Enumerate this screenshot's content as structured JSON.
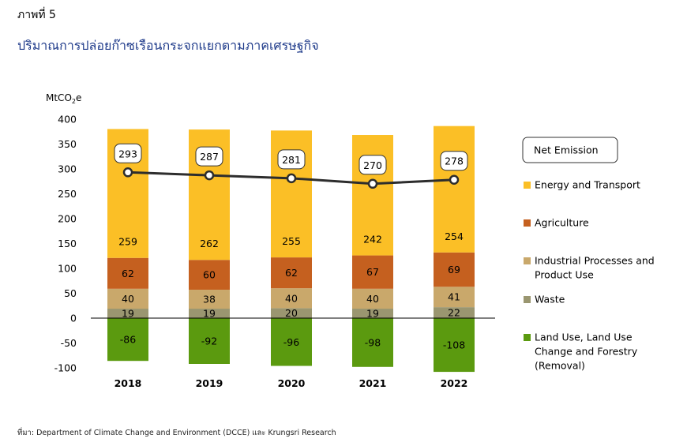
{
  "figure_label": "ภาพที่ 5",
  "title": "ปริมาณการปล่อยก๊าซเรือนกระจกแยกตามภาคเศรษฐกิจ",
  "source": "ที่มา: Department of Climate Change and Environment (DCCE) และ Krungsri Research",
  "chart_data": {
    "type": "bar",
    "stacked": true,
    "ylabel_main": "MtCO",
    "ylabel_sub": "2",
    "ylabel_tail": "e",
    "ylim": [
      -100,
      400
    ],
    "yticks": [
      400,
      350,
      300,
      250,
      200,
      150,
      100,
      50,
      0,
      -50,
      -100
    ],
    "categories": [
      "2018",
      "2019",
      "2020",
      "2021",
      "2022"
    ],
    "series": [
      {
        "name": "Waste",
        "color": "#9a9670",
        "values": [
          19,
          19,
          20,
          19,
          22
        ]
      },
      {
        "name": "Industrial Processes and Product Use",
        "color": "#c9a86b",
        "values": [
          40,
          38,
          40,
          40,
          41
        ]
      },
      {
        "name": "Agriculture",
        "color": "#c5601f",
        "values": [
          62,
          60,
          62,
          67,
          69
        ]
      },
      {
        "name": "Energy and Transport",
        "color": "#fbbf26",
        "values": [
          259,
          262,
          255,
          242,
          254
        ]
      },
      {
        "name": "Land Use, Land Use Change and Forestry (Removal)",
        "color": "#5b9a0f",
        "values": [
          -86,
          -92,
          -96,
          -98,
          -108
        ]
      }
    ],
    "net": {
      "name": "Net Emission",
      "color": "#2d2d2d",
      "values": [
        293,
        287,
        281,
        270,
        278
      ]
    },
    "legend": [
      {
        "lines": [
          "Net Emission"
        ],
        "kind": "box"
      },
      {
        "lines": [
          "Energy and Transport"
        ],
        "color": "#fbbf26"
      },
      {
        "lines": [
          "Agriculture"
        ],
        "color": "#c5601f"
      },
      {
        "lines": [
          "Industrial Processes and",
          "Product Use"
        ],
        "color": "#c9a86b"
      },
      {
        "lines": [
          "Waste"
        ],
        "color": "#9a9670"
      },
      {
        "lines": [
          "Land Use, Land Use",
          "Change and Forestry",
          "(Removal)"
        ],
        "color": "#5b9a0f"
      }
    ],
    "legend_position": "right"
  }
}
